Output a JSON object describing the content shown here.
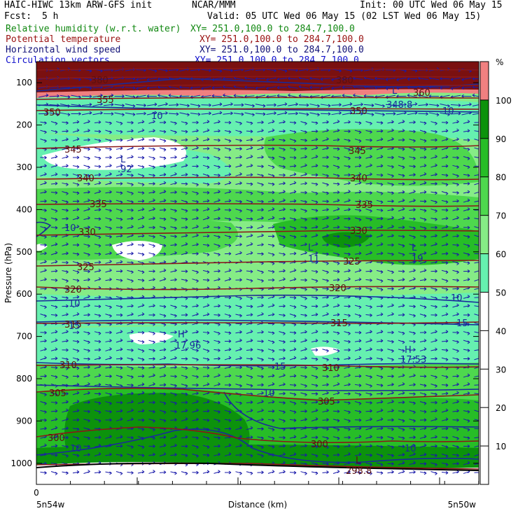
{
  "header": {
    "model": "HAIC-HIWC 13km ARW-GFS init",
    "center": "NCAR/MMM",
    "init": "Init: 00 UTC Wed 06 May 15",
    "fcst_label": "Fcst:",
    "fcst_value": "5 h",
    "valid": "Valid: 05 UTC Wed 06 May 15 (02 LST Wed 06 May 15)",
    "fields": [
      {
        "name": "Relative humidity (w.r.t. water)",
        "xy": "XY= 251.0,100.0 to 284.7,100.0",
        "color": "#118811"
      },
      {
        "name": "Potential temperature",
        "xy": "XY= 251.0,100.0 to 284.7,100.0",
        "color": "#991111"
      },
      {
        "name": "Horizontal wind speed",
        "xy": "XY= 251.0,100.0 to 284.7,100.0",
        "color": "#111177"
      },
      {
        "name": "Circulation vectors",
        "xy": "XY= 251.0,100.0 to 284.7,100.0",
        "color": "#1111cc"
      }
    ]
  },
  "chart_data": {
    "type": "heatmap",
    "title": "",
    "xlabel": "Distance (km)",
    "ylabel": "Pressure (hPa)",
    "x_ticks": [
      "0"
    ],
    "x_end_labels": [
      "5n54w",
      "5n50w"
    ],
    "y_ticks": [
      100,
      200,
      300,
      400,
      500,
      600,
      700,
      800,
      900,
      1000
    ],
    "ylim": [
      1050,
      50
    ],
    "colorbar": {
      "unit": "%",
      "levels": [
        10,
        20,
        30,
        40,
        50,
        60,
        70,
        80,
        90,
        100
      ],
      "colors": [
        "#ffffff",
        "#ffffff",
        "#ffffff",
        "#ffffff",
        "#ffffff",
        "#66f0b0",
        "#86ec86",
        "#4ed84e",
        "#27bd27",
        "#0c920c",
        "#f08080"
      ]
    },
    "theta_contours": [
      {
        "value": 380,
        "label": "380"
      },
      {
        "value": 360,
        "label": "360"
      },
      {
        "value": 355,
        "label": "355"
      },
      {
        "value": 350,
        "label": "350"
      },
      {
        "value": 345,
        "label": "345"
      },
      {
        "value": 340,
        "label": "340"
      },
      {
        "value": 335,
        "label": "335"
      },
      {
        "value": 330,
        "label": "330"
      },
      {
        "value": 325,
        "label": "325"
      },
      {
        "value": 320,
        "label": "320"
      },
      {
        "value": 315,
        "label": "315"
      },
      {
        "value": 310,
        "label": "310"
      },
      {
        "value": 305,
        "label": "305"
      },
      {
        "value": 300,
        "label": "300"
      }
    ],
    "annotations": [
      {
        "text": "L",
        "note": "rh-min"
      },
      {
        "text": ".92"
      },
      {
        "text": "L"
      },
      {
        "text": "11"
      },
      {
        "text": "L"
      },
      {
        "text": "19"
      },
      {
        "text": "H"
      },
      {
        "text": "17.96"
      },
      {
        "text": "H"
      },
      {
        "text": "17.53"
      },
      {
        "text": "L"
      },
      {
        "text": "298.8"
      },
      {
        "text": "L"
      },
      {
        "text": "348.8"
      }
    ],
    "wind_speed_labels": [
      "10",
      "10",
      "10",
      "10",
      "15",
      "15",
      "15",
      "10",
      "10",
      "10",
      "10"
    ],
    "grid": false
  }
}
